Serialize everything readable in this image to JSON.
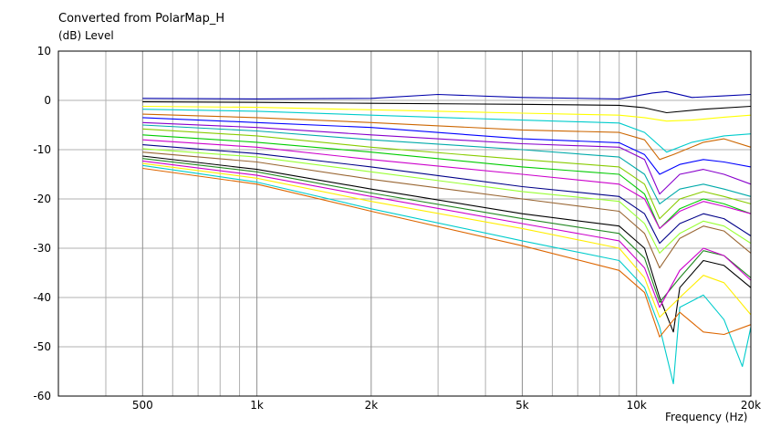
{
  "chart_data": {
    "type": "line",
    "title": "Converted from PolarMap_H",
    "ylabel": "(dB)  Level",
    "xlabel": "Frequency  (Hz)",
    "xscale": "log",
    "xlim": [
      300,
      20000
    ],
    "ylim": [
      -60,
      10
    ],
    "grid": true,
    "x_ticks": [
      {
        "v": 500,
        "label": "500"
      },
      {
        "v": 1000,
        "label": "1k"
      },
      {
        "v": 2000,
        "label": "2k"
      },
      {
        "v": 5000,
        "label": "5k"
      },
      {
        "v": 10000,
        "label": "10k"
      },
      {
        "v": 20000,
        "label": "20k"
      }
    ],
    "x_minor": [
      400,
      600,
      700,
      800,
      900,
      3000,
      4000,
      6000,
      7000,
      8000,
      9000
    ],
    "y_ticks": [
      10,
      0,
      -10,
      -20,
      -30,
      -40,
      -50,
      -60
    ],
    "series": [
      {
        "color": "#0000aa",
        "points": [
          [
            500,
            0.4
          ],
          [
            1000,
            0.3
          ],
          [
            2000,
            0.4
          ],
          [
            3000,
            1.2
          ],
          [
            5000,
            0.6
          ],
          [
            9000,
            0.3
          ],
          [
            11000,
            1.5
          ],
          [
            12000,
            1.8
          ],
          [
            14000,
            0.6
          ],
          [
            17000,
            0.9
          ],
          [
            20000,
            1.2
          ]
        ]
      },
      {
        "color": "#000000",
        "points": [
          [
            500,
            -0.3
          ],
          [
            1000,
            -0.4
          ],
          [
            2000,
            -0.6
          ],
          [
            5000,
            -0.8
          ],
          [
            9000,
            -1.0
          ],
          [
            10500,
            -1.5
          ],
          [
            12000,
            -2.5
          ],
          [
            15000,
            -1.8
          ],
          [
            20000,
            -1.2
          ]
        ]
      },
      {
        "color": "#ffff00",
        "points": [
          [
            500,
            -1.2
          ],
          [
            1000,
            -1.4
          ],
          [
            2000,
            -1.9
          ],
          [
            5000,
            -2.6
          ],
          [
            9000,
            -3.0
          ],
          [
            10500,
            -3.5
          ],
          [
            12000,
            -4.2
          ],
          [
            14000,
            -4.0
          ],
          [
            17000,
            -3.4
          ],
          [
            20000,
            -3.0
          ]
        ]
      },
      {
        "color": "#00cccc",
        "points": [
          [
            500,
            -1.8
          ],
          [
            1000,
            -2.2
          ],
          [
            2000,
            -3.0
          ],
          [
            5000,
            -4.0
          ],
          [
            9000,
            -4.6
          ],
          [
            10500,
            -6.5
          ],
          [
            12000,
            -10.5
          ],
          [
            14000,
            -8.5
          ],
          [
            17000,
            -7.2
          ],
          [
            20000,
            -6.8
          ]
        ]
      },
      {
        "color": "#cc6600",
        "points": [
          [
            500,
            -2.8
          ],
          [
            1000,
            -3.5
          ],
          [
            2000,
            -4.5
          ],
          [
            5000,
            -6.0
          ],
          [
            9000,
            -6.5
          ],
          [
            10500,
            -8.0
          ],
          [
            11500,
            -12.0
          ],
          [
            12500,
            -11.0
          ],
          [
            15000,
            -8.5
          ],
          [
            17000,
            -7.8
          ],
          [
            20000,
            -9.5
          ]
        ]
      },
      {
        "color": "#0000ff",
        "points": [
          [
            500,
            -3.5
          ],
          [
            1000,
            -4.5
          ],
          [
            2000,
            -5.5
          ],
          [
            5000,
            -7.8
          ],
          [
            9000,
            -8.6
          ],
          [
            10500,
            -11.0
          ],
          [
            11500,
            -15.0
          ],
          [
            13000,
            -13.0
          ],
          [
            15000,
            -12.0
          ],
          [
            17000,
            -12.5
          ],
          [
            20000,
            -13.5
          ]
        ]
      },
      {
        "color": "#8800cc",
        "points": [
          [
            500,
            -4.5
          ],
          [
            1000,
            -5.5
          ],
          [
            2000,
            -7.0
          ],
          [
            5000,
            -8.8
          ],
          [
            9000,
            -9.5
          ],
          [
            10500,
            -12.0
          ],
          [
            11500,
            -19.0
          ],
          [
            13000,
            -15.0
          ],
          [
            15000,
            -14.0
          ],
          [
            17000,
            -15.0
          ],
          [
            20000,
            -17.0
          ]
        ]
      },
      {
        "color": "#00aaaa",
        "points": [
          [
            500,
            -5.0
          ],
          [
            1000,
            -6.2
          ],
          [
            2000,
            -8.0
          ],
          [
            5000,
            -10.0
          ],
          [
            9000,
            -11.5
          ],
          [
            10500,
            -15.0
          ],
          [
            11500,
            -21.0
          ],
          [
            13000,
            -18.0
          ],
          [
            15000,
            -17.0
          ],
          [
            17000,
            -18.0
          ],
          [
            20000,
            -19.5
          ]
        ]
      },
      {
        "color": "#88cc00",
        "points": [
          [
            500,
            -5.8
          ],
          [
            1000,
            -7.2
          ],
          [
            2000,
            -9.5
          ],
          [
            5000,
            -12.0
          ],
          [
            9000,
            -13.5
          ],
          [
            10500,
            -17.0
          ],
          [
            11500,
            -24.0
          ],
          [
            13000,
            -20.0
          ],
          [
            15000,
            -18.5
          ],
          [
            17000,
            -19.5
          ],
          [
            20000,
            -21.0
          ]
        ]
      },
      {
        "color": "#00cc00",
        "points": [
          [
            500,
            -7.0
          ],
          [
            1000,
            -8.5
          ],
          [
            2000,
            -10.5
          ],
          [
            5000,
            -13.5
          ],
          [
            9000,
            -15.0
          ],
          [
            10500,
            -19.0
          ],
          [
            11500,
            -26.0
          ],
          [
            13000,
            -22.0
          ],
          [
            15000,
            -20.0
          ],
          [
            17000,
            -21.0
          ],
          [
            20000,
            -23.0
          ]
        ]
      },
      {
        "color": "#cc00cc",
        "points": [
          [
            500,
            -8.0
          ],
          [
            1000,
            -9.5
          ],
          [
            2000,
            -12.0
          ],
          [
            5000,
            -15.0
          ],
          [
            9000,
            -17.0
          ],
          [
            10500,
            -20.0
          ],
          [
            11500,
            -26.0
          ],
          [
            13000,
            -22.5
          ],
          [
            15000,
            -20.5
          ],
          [
            17000,
            -21.5
          ],
          [
            20000,
            -23.0
          ]
        ]
      },
      {
        "color": "#000088",
        "points": [
          [
            500,
            -9.0
          ],
          [
            1000,
            -10.8
          ],
          [
            2000,
            -13.5
          ],
          [
            5000,
            -17.5
          ],
          [
            9000,
            -19.5
          ],
          [
            10500,
            -23.0
          ],
          [
            11500,
            -29.0
          ],
          [
            13000,
            -25.0
          ],
          [
            15000,
            -23.0
          ],
          [
            17000,
            -24.0
          ],
          [
            20000,
            -27.5
          ]
        ]
      },
      {
        "color": "#99ff33",
        "points": [
          [
            500,
            -9.8
          ],
          [
            1000,
            -11.5
          ],
          [
            2000,
            -14.5
          ],
          [
            5000,
            -18.5
          ],
          [
            9000,
            -20.5
          ],
          [
            10500,
            -25.0
          ],
          [
            11500,
            -31.0
          ],
          [
            13000,
            -27.0
          ],
          [
            15000,
            -24.5
          ],
          [
            17000,
            -25.5
          ],
          [
            20000,
            -29.0
          ]
        ]
      },
      {
        "color": "#996633",
        "points": [
          [
            500,
            -10.5
          ],
          [
            1000,
            -12.5
          ],
          [
            2000,
            -16.0
          ],
          [
            5000,
            -20.0
          ],
          [
            9000,
            -22.5
          ],
          [
            10500,
            -27.0
          ],
          [
            11500,
            -34.0
          ],
          [
            13000,
            -28.0
          ],
          [
            15000,
            -25.5
          ],
          [
            17000,
            -26.5
          ],
          [
            20000,
            -31.0
          ]
        ]
      },
      {
        "color": "#000000",
        "points": [
          [
            500,
            -11.3
          ],
          [
            1000,
            -14.0
          ],
          [
            2000,
            -18.0
          ],
          [
            5000,
            -23.0
          ],
          [
            9000,
            -25.5
          ],
          [
            10500,
            -30.0
          ],
          [
            11500,
            -40.0
          ],
          [
            12500,
            -47.0
          ],
          [
            13000,
            -38.0
          ],
          [
            15000,
            -32.5
          ],
          [
            17000,
            -33.5
          ],
          [
            20000,
            -38.0
          ]
        ]
      },
      {
        "color": "#228822",
        "points": [
          [
            500,
            -11.8
          ],
          [
            1000,
            -14.5
          ],
          [
            2000,
            -18.8
          ],
          [
            5000,
            -24.0
          ],
          [
            9000,
            -27.0
          ],
          [
            10500,
            -32.0
          ],
          [
            11500,
            -41.0
          ],
          [
            13000,
            -36.0
          ],
          [
            15000,
            -30.5
          ],
          [
            17000,
            -31.5
          ],
          [
            20000,
            -36.0
          ]
        ]
      },
      {
        "color": "#cc00cc",
        "points": [
          [
            500,
            -12.3
          ],
          [
            1000,
            -15.2
          ],
          [
            2000,
            -19.5
          ],
          [
            5000,
            -25.0
          ],
          [
            9000,
            -28.5
          ],
          [
            10500,
            -34.0
          ],
          [
            11500,
            -42.0
          ],
          [
            13000,
            -34.5
          ],
          [
            15000,
            -30.0
          ],
          [
            17000,
            -31.5
          ],
          [
            20000,
            -36.5
          ]
        ]
      },
      {
        "color": "#ffee00",
        "points": [
          [
            500,
            -12.8
          ],
          [
            1000,
            -15.8
          ],
          [
            2000,
            -20.5
          ],
          [
            5000,
            -26.0
          ],
          [
            9000,
            -30.0
          ],
          [
            10500,
            -36.0
          ],
          [
            11500,
            -44.0
          ],
          [
            13000,
            -40.0
          ],
          [
            15000,
            -35.5
          ],
          [
            17000,
            -37.0
          ],
          [
            20000,
            -43.5
          ]
        ]
      },
      {
        "color": "#00cccc",
        "points": [
          [
            500,
            -13.2
          ],
          [
            1000,
            -16.6
          ],
          [
            2000,
            -22.0
          ],
          [
            5000,
            -28.5
          ],
          [
            9000,
            -32.5
          ],
          [
            10500,
            -38.0
          ],
          [
            11500,
            -46.0
          ],
          [
            12500,
            -57.5
          ],
          [
            13000,
            -42.0
          ],
          [
            15000,
            -39.5
          ],
          [
            17000,
            -44.5
          ],
          [
            19000,
            -54.0
          ],
          [
            20000,
            -46.0
          ]
        ]
      },
      {
        "color": "#dd6600",
        "points": [
          [
            500,
            -13.8
          ],
          [
            1000,
            -17.0
          ],
          [
            2000,
            -22.5
          ],
          [
            5000,
            -29.5
          ],
          [
            9000,
            -34.5
          ],
          [
            10500,
            -39.0
          ],
          [
            11500,
            -48.0
          ],
          [
            13000,
            -43.0
          ],
          [
            15000,
            -47.0
          ],
          [
            17000,
            -47.5
          ],
          [
            20000,
            -45.5
          ]
        ]
      }
    ]
  }
}
